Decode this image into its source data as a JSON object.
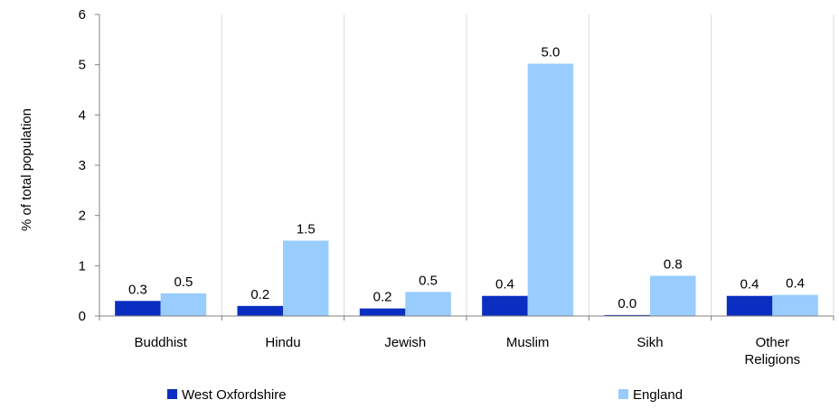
{
  "chart_data": {
    "type": "bar",
    "title": "",
    "xlabel": "",
    "ylabel": "% of total population",
    "ylim": [
      0,
      6
    ],
    "yticks": [
      "0",
      "1",
      "2",
      "3",
      "4",
      "5",
      "6"
    ],
    "grid": "vertical category dividers",
    "legend_position": "bottom",
    "categories": [
      [
        "Buddhist"
      ],
      [
        "Hindu"
      ],
      [
        "Jewish"
      ],
      [
        "Muslim"
      ],
      [
        "Sikh"
      ],
      [
        "Other",
        "Religions"
      ]
    ],
    "series": [
      {
        "name": "West Oxfordshire",
        "color": "#0a2ec0",
        "values": [
          0.3,
          0.2,
          0.15,
          0.4,
          0.02,
          0.4
        ],
        "labels": [
          "0.3",
          "0.2",
          "0.2",
          "0.4",
          "0.0",
          "0.4"
        ]
      },
      {
        "name": "England",
        "color": "#99ccff",
        "values": [
          0.45,
          1.5,
          0.48,
          5.02,
          0.8,
          0.42
        ],
        "labels": [
          "0.5",
          "1.5",
          "0.5",
          "5.0",
          "0.8",
          "0.4"
        ]
      }
    ]
  }
}
